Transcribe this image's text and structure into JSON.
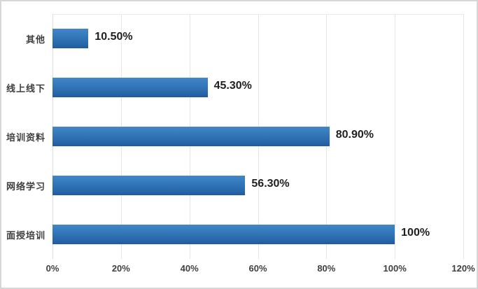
{
  "chart_data": {
    "type": "bar",
    "orientation": "horizontal",
    "title": "",
    "xlabel": "",
    "ylabel": "",
    "categories_top_to_bottom": [
      "其他",
      "线上线下",
      "培训资料",
      "网络学习",
      "面授培训"
    ],
    "values": [
      10.5,
      45.3,
      80.9,
      56.3,
      100
    ],
    "value_labels": [
      "10.50%",
      "45.30%",
      "80.90%",
      "56.30%",
      "100%"
    ],
    "xlim": [
      0,
      120
    ],
    "x_tick_values": [
      0,
      20,
      40,
      60,
      80,
      100,
      120
    ],
    "x_tick_labels": [
      "0%",
      "20%",
      "40%",
      "60%",
      "80%",
      "100%",
      "120%"
    ],
    "grid": "vertical-gridlines-on",
    "legend": "none",
    "colors": {
      "bar_top": "#4186c8",
      "bar_mid": "#2e72b4",
      "bar_bottom": "#1f5b9c",
      "gridline": "#e6e6e6",
      "tick_text": "#404040",
      "category_text": "#3d3d3d",
      "value_text": "#1f1f1f",
      "frame_border": "#d7d7d7",
      "background": "#ffffff"
    }
  }
}
